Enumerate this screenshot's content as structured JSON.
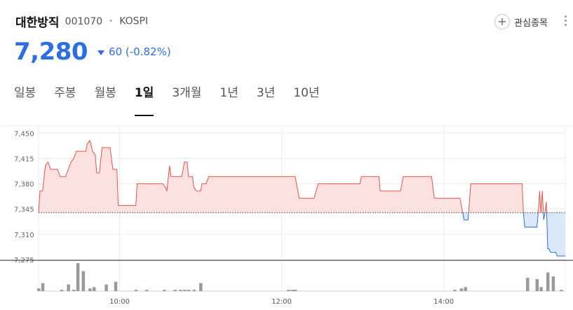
{
  "header": {
    "name": "대한방직",
    "code": "001070",
    "separator": "•",
    "market": "KOSPI"
  },
  "actions": {
    "watch_label": "관심종목",
    "watch_icon": "plus-icon",
    "more_icon": "more-vertical-icon"
  },
  "quote": {
    "price": "7,280",
    "change": "60",
    "change_pct": "(-0.82%)",
    "direction": "down",
    "color_down": "#2d6fe0",
    "color_up": "#e5534b"
  },
  "tabs": [
    {
      "label": "일봉",
      "active": false
    },
    {
      "label": "주봉",
      "active": false
    },
    {
      "label": "월봉",
      "active": false
    },
    {
      "label": "1일",
      "active": true
    },
    {
      "label": "3개월",
      "active": false
    },
    {
      "label": "1년",
      "active": false
    },
    {
      "label": "3년",
      "active": false
    },
    {
      "label": "10년",
      "active": false
    }
  ],
  "chart_data": {
    "type": "line",
    "title": "",
    "xlabel": "",
    "ylabel": "",
    "previous_close": 7340,
    "ylim": [
      7275,
      7460
    ],
    "xlim": [
      "09:00",
      "15:30"
    ],
    "y_ticks": [
      "7,450",
      "7,415",
      "7,380",
      "7,345",
      "7,310",
      "7,275"
    ],
    "y_tick_values": [
      7450,
      7415,
      7380,
      7345,
      7310,
      7275
    ],
    "x_ticks": [
      "10:00",
      "12:00",
      "14:00"
    ],
    "x_tick_values": [
      "10:00",
      "12:00",
      "14:00"
    ],
    "grid": true,
    "series": [
      {
        "points": [
          [
            "09:00",
            7340
          ],
          [
            "09:01",
            7370
          ],
          [
            "09:03",
            7370
          ],
          [
            "09:05",
            7405
          ],
          [
            "09:07",
            7410
          ],
          [
            "09:09",
            7400
          ],
          [
            "09:14",
            7400
          ],
          [
            "09:16",
            7390
          ],
          [
            "09:20",
            7390
          ],
          [
            "09:22",
            7400
          ],
          [
            "09:24",
            7410
          ],
          [
            "09:26",
            7415
          ],
          [
            "09:28",
            7425
          ],
          [
            "09:35",
            7425
          ],
          [
            "09:36",
            7435
          ],
          [
            "09:38",
            7440
          ],
          [
            "09:40",
            7425
          ],
          [
            "09:42",
            7420
          ],
          [
            "09:43",
            7395
          ],
          [
            "09:45",
            7395
          ],
          [
            "09:47",
            7430
          ],
          [
            "09:53",
            7430
          ],
          [
            "09:55",
            7400
          ],
          [
            "09:58",
            7400
          ],
          [
            "09:59",
            7350
          ],
          [
            "10:12",
            7350
          ],
          [
            "10:13",
            7380
          ],
          [
            "10:32",
            7380
          ],
          [
            "10:34",
            7375
          ],
          [
            "10:35",
            7370
          ],
          [
            "10:37",
            7405
          ],
          [
            "10:38",
            7390
          ],
          [
            "10:46",
            7390
          ],
          [
            "10:48",
            7410
          ],
          [
            "10:50",
            7410
          ],
          [
            "10:51",
            7390
          ],
          [
            "10:54",
            7390
          ],
          [
            "10:55",
            7375
          ],
          [
            "10:57",
            7370
          ],
          [
            "11:00",
            7370
          ],
          [
            "11:01",
            7380
          ],
          [
            "11:04",
            7380
          ],
          [
            "11:06",
            7390
          ],
          [
            "12:10",
            7390
          ],
          [
            "12:13",
            7360
          ],
          [
            "12:24",
            7360
          ],
          [
            "12:27",
            7380
          ],
          [
            "12:58",
            7380
          ],
          [
            "12:59",
            7390
          ],
          [
            "13:12",
            7390
          ],
          [
            "13:13",
            7370
          ],
          [
            "13:28",
            7370
          ],
          [
            "13:30",
            7390
          ],
          [
            "13:51",
            7390
          ],
          [
            "13:53",
            7360
          ],
          [
            "14:12",
            7360
          ],
          [
            "14:14",
            7340
          ],
          [
            "14:15",
            7330
          ],
          [
            "14:18",
            7330
          ],
          [
            "14:20",
            7380
          ],
          [
            "14:58",
            7380
          ],
          [
            "14:59",
            7340
          ],
          [
            "15:00",
            7320
          ],
          [
            "15:09",
            7320
          ],
          [
            "15:10",
            7340
          ],
          [
            "15:11",
            7370
          ],
          [
            "15:12",
            7340
          ],
          [
            "15:13",
            7370
          ],
          [
            "15:14",
            7330
          ],
          [
            "15:15",
            7340
          ],
          [
            "15:16",
            7355
          ],
          [
            "15:17",
            7290
          ],
          [
            "15:18",
            7290
          ],
          [
            "15:19",
            7285
          ],
          [
            "15:23",
            7285
          ],
          [
            "15:24",
            7280
          ],
          [
            "15:30",
            7280
          ]
        ]
      }
    ],
    "volume": {
      "times": [
        "09:00",
        "09:03",
        "09:17",
        "09:22",
        "09:26",
        "09:29",
        "09:33",
        "09:38",
        "09:41",
        "09:50",
        "09:57",
        "10:12",
        "10:20",
        "10:33",
        "10:41",
        "10:45",
        "10:48",
        "10:51",
        "10:55",
        "11:00",
        "12:05",
        "12:08",
        "12:10",
        "14:08",
        "14:13",
        "14:16",
        "15:02",
        "15:09",
        "15:12",
        "15:17",
        "15:21",
        "15:27"
      ],
      "values": [
        2,
        6,
        1,
        5,
        1,
        21,
        15,
        2,
        3,
        5,
        7,
        1,
        1,
        1,
        1,
        1,
        1,
        1,
        1,
        6,
        1,
        1,
        1,
        1,
        2,
        3,
        10,
        9,
        3,
        14,
        11,
        1
      ]
    }
  }
}
